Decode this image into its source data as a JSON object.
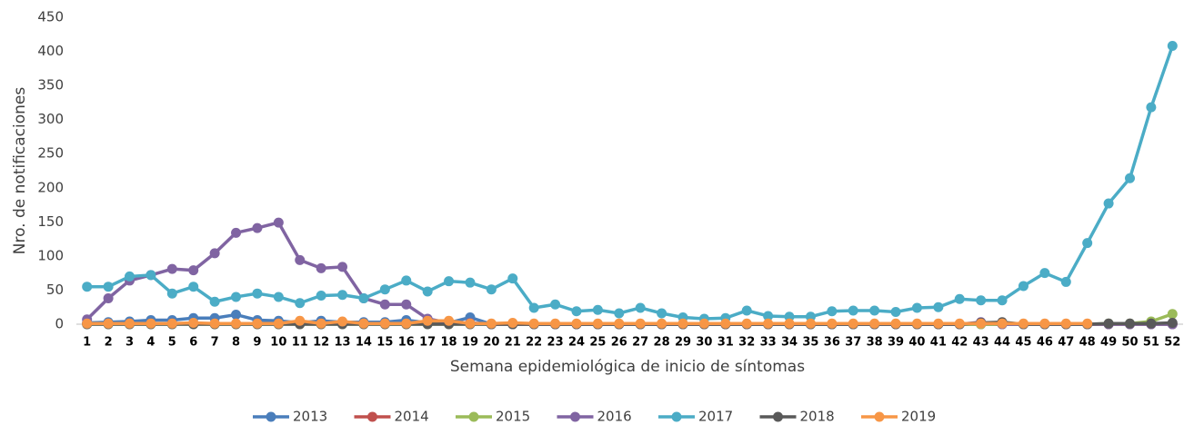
{
  "chart_data": {
    "type": "line",
    "y_label": "Nro. de notificaciones",
    "x_label": "Semana epidemiológica de inicio de síntomas",
    "categories": [
      "1",
      "2",
      "3",
      "4",
      "5",
      "6",
      "7",
      "8",
      "9",
      "10",
      "11",
      "12",
      "13",
      "14",
      "15",
      "16",
      "17",
      "18",
      "19",
      "20",
      "21",
      "22",
      "23",
      "24",
      "25",
      "26",
      "27",
      "28",
      "29",
      "30",
      "31",
      "32",
      "33",
      "34",
      "35",
      "36",
      "37",
      "38",
      "39",
      "40",
      "41",
      "42",
      "43",
      "44",
      "45",
      "46",
      "47",
      "48",
      "49",
      "50",
      "51",
      "52"
    ],
    "ylim": [
      0,
      450
    ],
    "yticks": [
      0,
      50,
      100,
      150,
      200,
      250,
      300,
      350,
      400,
      450
    ],
    "grid": false,
    "series": [
      {
        "name": "2013",
        "color": "#4a7ebb",
        "values": [
          2,
          3,
          4,
          6,
          6,
          9,
          9,
          14,
          6,
          5,
          2,
          5,
          3,
          3,
          3,
          6,
          2,
          2,
          10,
          0,
          0,
          0,
          0,
          0,
          0,
          0,
          0,
          0,
          0,
          0,
          0,
          0,
          0,
          0,
          0,
          0,
          0,
          0,
          0,
          0,
          0,
          0,
          0,
          0,
          0,
          0,
          0,
          0,
          0,
          0,
          0,
          0
        ]
      },
      {
        "name": "2014",
        "color": "#c0504d",
        "values": [
          1,
          1,
          1,
          1,
          1,
          1,
          1,
          1,
          1,
          1,
          1,
          1,
          1,
          1,
          1,
          1,
          1,
          1,
          1,
          0,
          0,
          0,
          0,
          0,
          0,
          0,
          0,
          0,
          0,
          0,
          0,
          0,
          0,
          0,
          0,
          0,
          0,
          0,
          0,
          0,
          0,
          0,
          0,
          0,
          0,
          0,
          0,
          0,
          0,
          0,
          0,
          0
        ]
      },
      {
        "name": "2015",
        "color": "#9bbb59",
        "values": [
          0,
          0,
          0,
          0,
          0,
          0,
          0,
          0,
          0,
          0,
          0,
          0,
          0,
          0,
          0,
          0,
          0,
          0,
          0,
          0,
          0,
          0,
          0,
          0,
          0,
          0,
          0,
          0,
          0,
          0,
          0,
          0,
          0,
          0,
          0,
          0,
          0,
          0,
          0,
          0,
          0,
          0,
          0,
          0,
          0,
          0,
          0,
          0,
          1,
          1,
          4,
          15
        ]
      },
      {
        "name": "2016",
        "color": "#8064a2",
        "values": [
          7,
          38,
          64,
          72,
          81,
          79,
          104,
          134,
          141,
          149,
          94,
          82,
          84,
          38,
          29,
          29,
          8,
          2,
          2,
          0,
          0,
          0,
          0,
          0,
          0,
          0,
          0,
          0,
          0,
          0,
          0,
          0,
          0,
          0,
          0,
          0,
          0,
          0,
          0,
          0,
          0,
          0,
          3,
          0,
          0,
          0,
          0,
          0,
          0,
          0,
          0,
          0
        ]
      },
      {
        "name": "2017",
        "color": "#4bacc6",
        "values": [
          55,
          55,
          70,
          72,
          45,
          55,
          33,
          40,
          45,
          40,
          31,
          42,
          43,
          38,
          51,
          64,
          48,
          63,
          61,
          51,
          67,
          24,
          29,
          19,
          21,
          16,
          24,
          16,
          10,
          8,
          9,
          20,
          12,
          11,
          11,
          19,
          20,
          20,
          18,
          24,
          25,
          37,
          35,
          35,
          56,
          75,
          62,
          119,
          177,
          214,
          318,
          408
        ]
      },
      {
        "name": "2018",
        "color": "#595959",
        "values": [
          0,
          0,
          0,
          0,
          0,
          0,
          0,
          0,
          0,
          0,
          0,
          0,
          0,
          0,
          0,
          0,
          0,
          0,
          0,
          0,
          0,
          0,
          0,
          0,
          0,
          0,
          0,
          0,
          0,
          0,
          0,
          0,
          0,
          0,
          0,
          0,
          0,
          0,
          0,
          0,
          0,
          0,
          2,
          3,
          0,
          0,
          0,
          0,
          1,
          1,
          1,
          2
        ]
      },
      {
        "name": "2019",
        "color": "#f79646",
        "values": [
          1,
          1,
          1,
          1,
          1,
          2,
          1,
          1,
          1,
          1,
          5,
          1,
          4,
          1,
          1,
          1,
          5,
          5,
          1,
          1,
          2,
          1,
          1,
          1,
          1,
          1,
          1,
          1,
          1,
          1,
          1,
          1,
          1,
          1,
          1,
          1,
          1,
          1,
          1,
          1,
          1,
          1,
          1,
          1,
          1,
          1,
          1,
          1,
          null,
          null,
          null,
          null
        ]
      }
    ]
  }
}
